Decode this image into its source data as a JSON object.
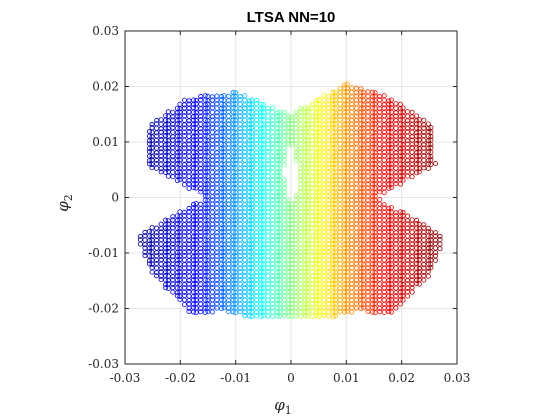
{
  "chart_data": {
    "type": "scatter",
    "title": "LTSA NN=10",
    "xlabel": {
      "symbol": "φ",
      "subscript": "1"
    },
    "ylabel": {
      "symbol": "φ",
      "subscript": "2"
    },
    "xlim": [
      -0.03,
      0.03
    ],
    "ylim": [
      -0.03,
      0.03
    ],
    "xticks": [
      -0.03,
      -0.02,
      -0.01,
      0,
      0.01,
      0.02,
      0.03
    ],
    "yticks": [
      -0.03,
      -0.02,
      -0.01,
      0,
      0.01,
      0.02,
      0.03
    ],
    "xtick_labels": [
      "-0.03",
      "-0.02",
      "-0.01",
      "0",
      "0.01",
      "0.02",
      "0.03"
    ],
    "ytick_labels": [
      "-0.03",
      "-0.02",
      "-0.01",
      "0",
      "0.01",
      "0.02",
      "0.03"
    ],
    "grid": true,
    "marker": "open-circle",
    "colormap": "jet",
    "colormap_stops": [
      "#00008f",
      "#0000ff",
      "#00ffff",
      "#ffff00",
      "#ff0000",
      "#800000"
    ],
    "grid_color": "#e6e6e6",
    "axis_color": "#262626",
    "outline": {
      "x": [
        -0.0255,
        -0.0195,
        -0.016,
        -0.01,
        -0.005,
        0.0,
        0.005,
        0.01,
        0.016,
        0.0195,
        0.0255,
        0.0275,
        0.025,
        0.018,
        0.0125,
        0.008,
        0.0,
        -0.008,
        -0.0125,
        -0.018,
        -0.025,
        -0.0275,
        -0.0255
      ],
      "y": [
        0.013,
        0.0175,
        0.0185,
        0.019,
        0.017,
        0.015,
        0.018,
        0.0205,
        0.019,
        0.017,
        0.013,
        -0.008,
        -0.014,
        -0.021,
        -0.0205,
        -0.0215,
        -0.0218,
        -0.0215,
        -0.0205,
        -0.021,
        -0.014,
        -0.008,
        0.013
      ]
    },
    "waist_y": 0.0,
    "waist_half_width": 0.0155,
    "hole": {
      "x": [
        -0.001,
        -0.0005,
        0.0,
        0.0006,
        0.0012,
        0.0009,
        0.0,
        -0.0008,
        -0.0013,
        -0.001
      ],
      "y": [
        0.008,
        0.009,
        0.0093,
        0.0088,
        0.0045,
        0.0005,
        -0.0008,
        0.0005,
        0.0045,
        0.008
      ]
    }
  }
}
